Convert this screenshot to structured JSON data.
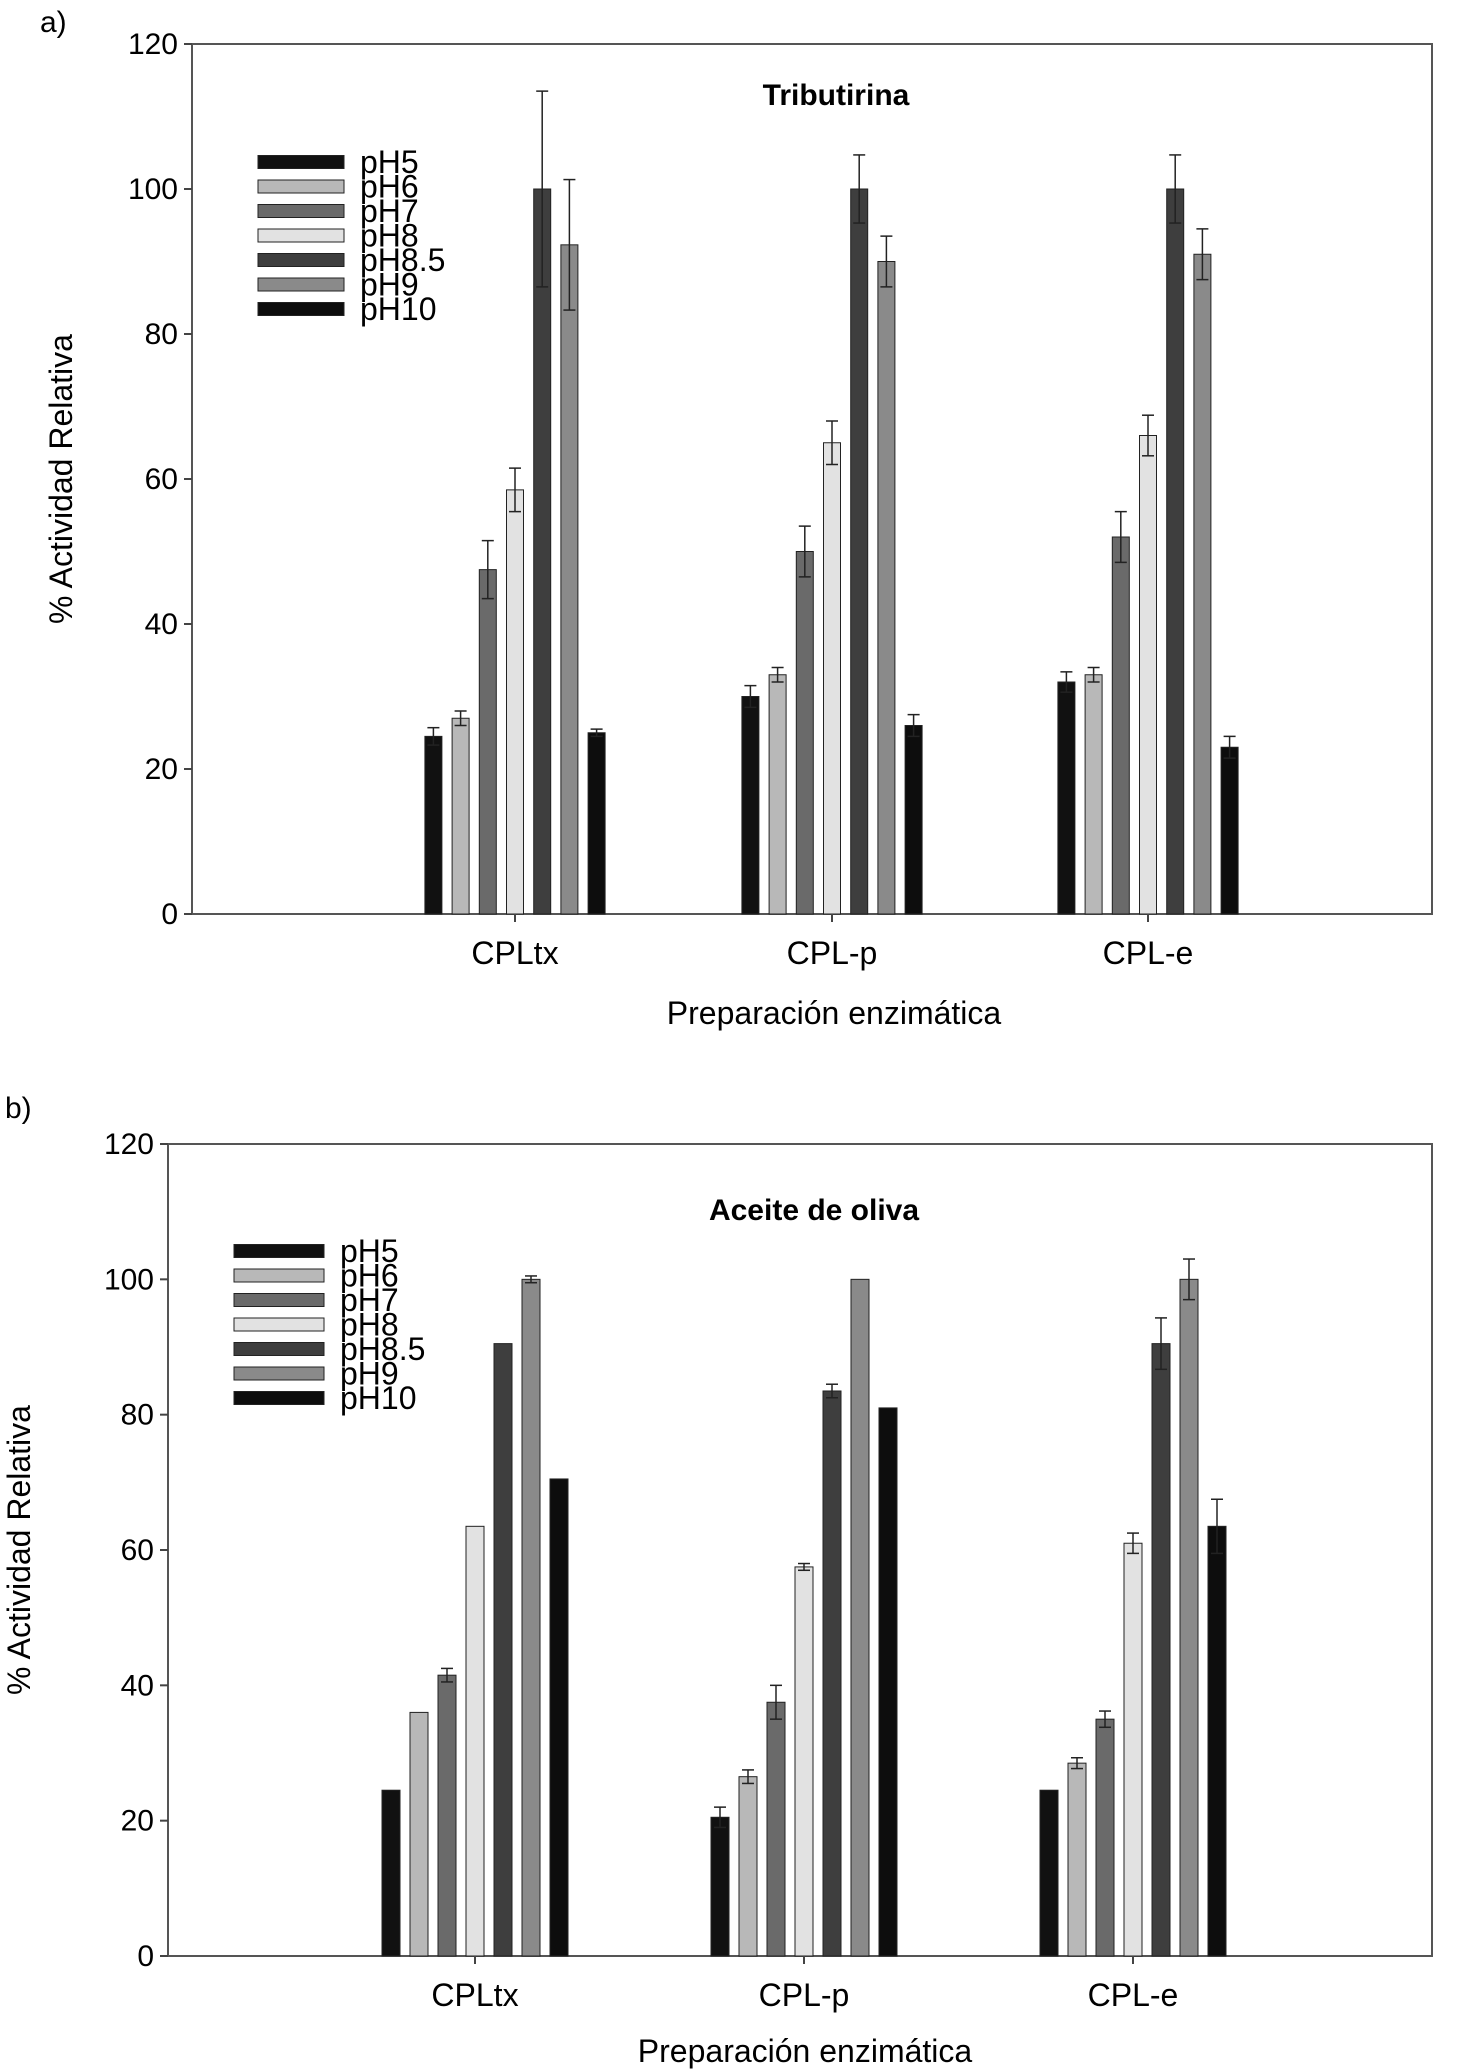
{
  "figure": {
    "panels": [
      "a)",
      "b)"
    ]
  },
  "chart_data": [
    {
      "type": "bar",
      "panel_label": "a)",
      "title": "Tributirina",
      "xlabel": "Preparación enzimática",
      "ylabel": "% Actividad Relativa",
      "ylim": [
        0,
        120
      ],
      "yticks": [
        "0",
        "20",
        "40",
        "60",
        "80",
        "100",
        "120"
      ],
      "grid": false,
      "legend_position": "top-left",
      "categories": [
        "CPLtx",
        "CPL-p",
        "CPL-e"
      ],
      "series": [
        {
          "name": "pH5",
          "color": "#111111",
          "values": [
            24.5,
            30,
            32
          ],
          "errors": [
            1.2,
            1.5,
            1.4
          ]
        },
        {
          "name": "pH6",
          "color": "#b8b8b8",
          "values": [
            27,
            33,
            33
          ],
          "errors": [
            1.0,
            1.0,
            1.0
          ]
        },
        {
          "name": "pH7",
          "color": "#6a6a6a",
          "values": [
            47.5,
            50,
            52
          ],
          "errors": [
            4.0,
            3.5,
            3.5
          ]
        },
        {
          "name": "pH8",
          "color": "#e2e2e2",
          "values": [
            58.5,
            65,
            66
          ],
          "errors": [
            3.0,
            3.0,
            2.8
          ]
        },
        {
          "name": "pH8.5",
          "color": "#3e3e3e",
          "values": [
            100,
            100,
            100
          ],
          "errors": [
            13.5,
            4.7,
            4.7
          ]
        },
        {
          "name": "pH9",
          "color": "#8a8a8a",
          "values": [
            92.3,
            90,
            91
          ],
          "errors": [
            9.0,
            3.5,
            3.5
          ]
        },
        {
          "name": "pH10",
          "color": "#0d0d0d",
          "values": [
            25,
            26,
            23
          ],
          "errors": [
            0.5,
            1.5,
            1.5
          ]
        }
      ]
    },
    {
      "type": "bar",
      "panel_label": "b)",
      "title": "Aceite de oliva",
      "xlabel": "Preparación enzimática",
      "ylabel": "% Actividad Relativa",
      "ylim": [
        0,
        120
      ],
      "yticks": [
        "0",
        "20",
        "40",
        "60",
        "80",
        "100",
        "120"
      ],
      "grid": false,
      "legend_position": "top-left",
      "categories": [
        "CPLtx",
        "CPL-p",
        "CPL-e"
      ],
      "series": [
        {
          "name": "pH5",
          "color": "#111111",
          "values": [
            24.5,
            20.5,
            24.5
          ],
          "errors": [
            0,
            1.5,
            0
          ]
        },
        {
          "name": "pH6",
          "color": "#b8b8b8",
          "values": [
            36,
            26.5,
            28.5
          ],
          "errors": [
            0,
            1.0,
            0.8
          ]
        },
        {
          "name": "pH7",
          "color": "#6a6a6a",
          "values": [
            41.5,
            37.5,
            35
          ],
          "errors": [
            1.0,
            2.5,
            1.2
          ]
        },
        {
          "name": "pH8",
          "color": "#e2e2e2",
          "values": [
            63.5,
            57.5,
            61
          ],
          "errors": [
            0,
            0.5,
            1.5
          ]
        },
        {
          "name": "pH8.5",
          "color": "#3e3e3e",
          "values": [
            90.5,
            83.5,
            90.5
          ],
          "errors": [
            0,
            1.0,
            3.8
          ]
        },
        {
          "name": "pH9",
          "color": "#8a8a8a",
          "values": [
            100,
            100,
            100
          ],
          "errors": [
            0.5,
            0,
            3.0
          ]
        },
        {
          "name": "pH10",
          "color": "#0d0d0d",
          "values": [
            70.5,
            81,
            63.5
          ],
          "errors": [
            0,
            0,
            4.0
          ]
        }
      ]
    }
  ]
}
